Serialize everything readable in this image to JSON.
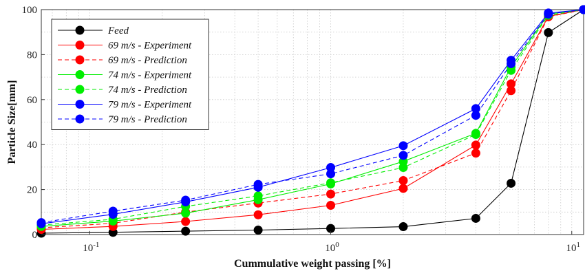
{
  "chart_data": {
    "type": "line",
    "xlabel": "Cummulative weight passing [%]",
    "ylabel": "Particle Size[mm]",
    "xscale": "log",
    "xlim": [
      0.063,
      11.2
    ],
    "ylim": [
      0,
      100
    ],
    "yticks": [
      "0",
      "20",
      "40",
      "60",
      "80",
      "100"
    ],
    "xticks": [
      {
        "value": 0.1,
        "base": "10",
        "exp": "-1"
      },
      {
        "value": 1,
        "base": "10",
        "exp": "0"
      },
      {
        "value": 10,
        "base": "10",
        "exp": "1"
      }
    ],
    "grid": true,
    "legend_position": "top-left",
    "x": [
      0.063,
      0.125,
      0.25,
      0.5,
      1,
      2,
      4,
      5.6,
      8,
      11.2
    ],
    "series": [
      {
        "name": "Feed",
        "color": "#000000",
        "dash": "solid",
        "values": [
          0.6,
          1.0,
          1.5,
          2.0,
          2.7,
          3.5,
          7.2,
          22.8,
          89.8,
          100
        ]
      },
      {
        "name": "69 m/s - Experiment",
        "color": "#ff0000",
        "dash": "solid",
        "values": [
          2.3,
          3.6,
          5.8,
          8.8,
          13.0,
          20.5,
          39.8,
          67.0,
          97.0,
          100
        ]
      },
      {
        "name": "69 m/s - Prediction",
        "color": "#ff0000",
        "dash": "dashed",
        "values": [
          3.0,
          5.0,
          10.0,
          14.0,
          18.0,
          24.0,
          36.2,
          64.0,
          96.8,
          100
        ]
      },
      {
        "name": "74 m/s - Experiment",
        "color": "#00ee00",
        "dash": "solid",
        "values": [
          3.6,
          6.0,
          9.5,
          15.5,
          22.5,
          32.5,
          45.0,
          74.5,
          98.0,
          100
        ]
      },
      {
        "name": "74 m/s - Prediction",
        "color": "#00ee00",
        "dash": "dashed",
        "values": [
          4.2,
          6.8,
          12.5,
          17.2,
          23.0,
          29.8,
          44.5,
          73.0,
          97.5,
          100
        ]
      },
      {
        "name": "79 m/s - Experiment",
        "color": "#0000ff",
        "dash": "solid",
        "values": [
          4.8,
          9.0,
          14.5,
          21.0,
          29.8,
          39.5,
          56.0,
          77.5,
          98.5,
          100
        ]
      },
      {
        "name": "79 m/s - Prediction",
        "color": "#0000ff",
        "dash": "dashed",
        "values": [
          5.3,
          10.4,
          15.3,
          22.3,
          27.0,
          35.2,
          53.0,
          76.0,
          98.0,
          100
        ]
      }
    ]
  }
}
